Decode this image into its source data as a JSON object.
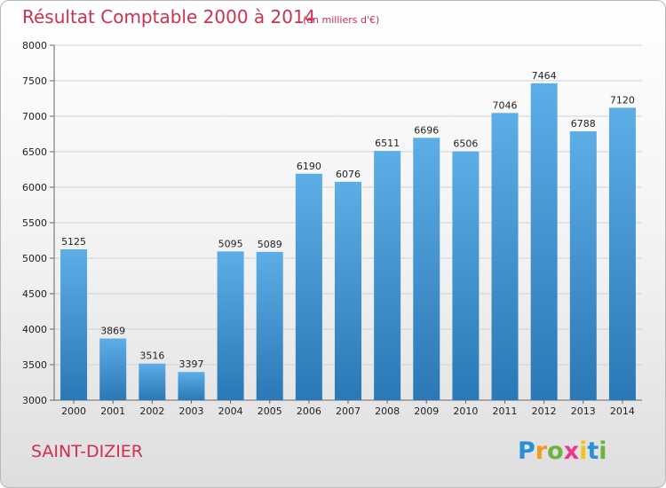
{
  "chart_data": {
    "type": "bar",
    "title": "Résultat Comptable 2000 à 2014",
    "subtitle": "(en milliers d'€)",
    "categories": [
      "2000",
      "2001",
      "2002",
      "2003",
      "2004",
      "2005",
      "2006",
      "2007",
      "2008",
      "2009",
      "2010",
      "2011",
      "2012",
      "2013",
      "2014"
    ],
    "values": [
      5125,
      3869,
      3516,
      3397,
      5095,
      5089,
      6190,
      6076,
      6511,
      6696,
      6506,
      7046,
      7464,
      6788,
      7120
    ],
    "ylim": [
      3000,
      8000
    ],
    "yticks": [
      3000,
      3500,
      4000,
      4500,
      5000,
      5500,
      6000,
      6500,
      7000,
      7500,
      8000
    ],
    "grid": true,
    "bar_color_top": "#5dade6",
    "bar_color_bottom": "#2a78b5",
    "xlabel": "",
    "ylabel": ""
  },
  "footer": {
    "city": "SAINT-DIZIER",
    "logo": {
      "letters": [
        "P",
        "r",
        "o",
        "x",
        "i",
        "t",
        "i"
      ],
      "colors": [
        "#2a8fd6",
        "#f29a1f",
        "#6cb33f",
        "#e83a8c",
        "#f2c31f",
        "#2a8fd6",
        "#6cb33f"
      ]
    }
  }
}
